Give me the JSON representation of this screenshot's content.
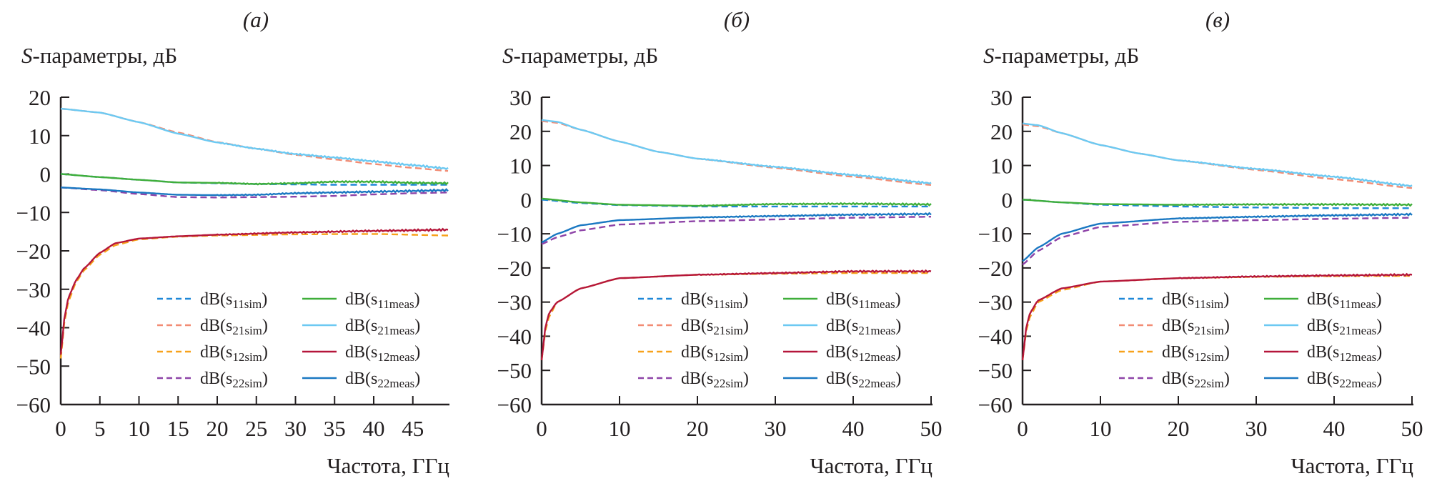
{
  "figure": {
    "y_label_prefix": "S",
    "y_label_rest": "-параметры, дБ",
    "x_label": "Частота, ГГц"
  },
  "colors": {
    "s11sim": "#1e88d8",
    "s21sim": "#f28c74",
    "s12sim": "#f7a21b",
    "s22sim": "#8e44a8",
    "s11meas": "#3fae3a",
    "s21meas": "#6cc9f2",
    "s12meas": "#b5163a",
    "s22meas": "#1a78c2",
    "axis": "#231f20"
  },
  "chart_data": [
    {
      "type": "line",
      "title": "(а)",
      "title_letter": "а",
      "ylabel": "S-параметры, дБ",
      "xlabel": "Частота, ГГц",
      "xlim": [
        0,
        49.5
      ],
      "ylim": [
        -60,
        20
      ],
      "xticks": [
        0,
        5,
        10,
        15,
        20,
        25,
        30,
        35,
        40,
        45
      ],
      "yticks": [
        20,
        10,
        0,
        -10,
        -20,
        -30,
        -40,
        -50,
        -60
      ],
      "legend": "bottom-right",
      "grid": false,
      "series": [
        {
          "key": "s11sim",
          "name": "dB(s11sim)",
          "sub": "11sim",
          "style": "dashed",
          "x": [
            0,
            5,
            10,
            15,
            20,
            25,
            30,
            35,
            40,
            45,
            49.5
          ],
          "y": [
            0,
            -0.8,
            -1.5,
            -2.2,
            -2.4,
            -2.6,
            -2.7,
            -2.8,
            -2.8,
            -2.8,
            -2.8
          ]
        },
        {
          "key": "s21sim",
          "name": "dB(s21sim)",
          "sub": "21sim",
          "style": "dashed",
          "x": [
            0,
            5,
            10,
            15,
            20,
            25,
            30,
            35,
            40,
            45,
            49.5
          ],
          "y": [
            17,
            16,
            13.5,
            10.8,
            8.3,
            6.6,
            5,
            3.8,
            2.6,
            1.6,
            0.8
          ]
        },
        {
          "key": "s12sim",
          "name": "dB(s12sim)",
          "sub": "12sim",
          "style": "dashed",
          "x": [
            0,
            0.5,
            1,
            2,
            3,
            5,
            7,
            10,
            15,
            20,
            30,
            40,
            49.5
          ],
          "y": [
            -48,
            -38,
            -33,
            -28,
            -25,
            -21,
            -18.5,
            -17,
            -16.3,
            -16,
            -15.7,
            -15.6,
            -16
          ]
        },
        {
          "key": "s22sim",
          "name": "dB(s22sim)",
          "sub": "22sim",
          "style": "dashed",
          "x": [
            0,
            5,
            10,
            15,
            20,
            25,
            30,
            35,
            40,
            45,
            49.5
          ],
          "y": [
            -3.5,
            -4.2,
            -5.2,
            -6,
            -6.1,
            -6,
            -5.9,
            -5.7,
            -5.3,
            -5,
            -4.8
          ]
        },
        {
          "key": "s11meas",
          "name": "dB(s11meas)",
          "sub": "11meas",
          "style": "solid",
          "x": [
            0,
            5,
            10,
            15,
            20,
            25,
            30,
            35,
            40,
            45,
            49.5
          ],
          "y": [
            0,
            -0.8,
            -1.5,
            -2.2,
            -2.3,
            -2.6,
            -2.4,
            -2,
            -2,
            -2.3,
            -2.4
          ]
        },
        {
          "key": "s21meas",
          "name": "dB(s21meas)",
          "sub": "21meas",
          "style": "solid",
          "x": [
            0,
            5,
            10,
            15,
            20,
            25,
            30,
            35,
            40,
            45,
            49.5
          ],
          "y": [
            17,
            16,
            13.5,
            10.5,
            8.2,
            6.6,
            5.2,
            4.3,
            3.3,
            2.3,
            1.4
          ]
        },
        {
          "key": "s12meas",
          "name": "dB(s12meas)",
          "sub": "12meas",
          "style": "solid",
          "x": [
            0,
            0.5,
            1,
            2,
            3,
            5,
            7,
            10,
            15,
            20,
            30,
            40,
            49.5
          ],
          "y": [
            -47,
            -37,
            -32,
            -27.5,
            -24.5,
            -20.5,
            -18,
            -16.8,
            -16.2,
            -15.8,
            -15.2,
            -14.8,
            -14.5
          ]
        },
        {
          "key": "s22meas",
          "name": "dB(s22meas)",
          "sub": "22meas",
          "style": "solid",
          "x": [
            0,
            5,
            10,
            15,
            20,
            25,
            30,
            35,
            40,
            45,
            49.5
          ],
          "y": [
            -3.5,
            -4,
            -4.8,
            -5.4,
            -5.5,
            -5.4,
            -5,
            -4.8,
            -4.6,
            -4.4,
            -4.2
          ]
        }
      ]
    },
    {
      "type": "line",
      "title": "(б)",
      "title_letter": "б",
      "ylabel": "S-параметры, дБ",
      "xlabel": "Частота, ГГц",
      "xlim": [
        0,
        50
      ],
      "ylim": [
        -60,
        30
      ],
      "xticks": [
        0,
        10,
        20,
        30,
        40,
        50
      ],
      "yticks": [
        30,
        20,
        10,
        0,
        -10,
        -20,
        -30,
        -40,
        -50,
        -60
      ],
      "legend": "bottom-right",
      "grid": false,
      "series": [
        {
          "key": "s11sim",
          "name": "dB(s11sim)",
          "sub": "11sim",
          "style": "dashed",
          "x": [
            0,
            5,
            10,
            20,
            30,
            40,
            50
          ],
          "y": [
            0,
            -1,
            -1.6,
            -2,
            -2,
            -2,
            -2
          ]
        },
        {
          "key": "s21sim",
          "name": "dB(s21sim)",
          "sub": "21sim",
          "style": "dashed",
          "x": [
            0,
            2,
            5,
            10,
            15,
            20,
            30,
            40,
            50
          ],
          "y": [
            23,
            22.5,
            20.5,
            17,
            14,
            12,
            9.3,
            6.7,
            4.3
          ]
        },
        {
          "key": "s12sim",
          "name": "dB(s12sim)",
          "sub": "12sim",
          "style": "dashed",
          "x": [
            0,
            0.5,
            1,
            2,
            5,
            10,
            20,
            30,
            40,
            50
          ],
          "y": [
            -47,
            -38,
            -34,
            -30,
            -26,
            -23,
            -22,
            -21.7,
            -21.5,
            -21.5
          ]
        },
        {
          "key": "s22sim",
          "name": "dB(s22sim)",
          "sub": "22sim",
          "style": "dashed",
          "x": [
            0,
            2,
            5,
            10,
            20,
            30,
            40,
            50
          ],
          "y": [
            -13,
            -11,
            -9,
            -7.3,
            -6.3,
            -5.8,
            -5.3,
            -5
          ]
        },
        {
          "key": "s11meas",
          "name": "dB(s11meas)",
          "sub": "11meas",
          "style": "solid",
          "x": [
            0,
            5,
            10,
            20,
            30,
            40,
            50
          ],
          "y": [
            0.3,
            -0.8,
            -1.5,
            -1.8,
            -1.3,
            -1.2,
            -1.4
          ]
        },
        {
          "key": "s21meas",
          "name": "dB(s21meas)",
          "sub": "21meas",
          "style": "solid",
          "x": [
            0,
            2,
            5,
            10,
            15,
            20,
            30,
            40,
            50
          ],
          "y": [
            23.3,
            22.8,
            20.5,
            17,
            14,
            12,
            9.6,
            7.2,
            4.8
          ]
        },
        {
          "key": "s12meas",
          "name": "dB(s12meas)",
          "sub": "12meas",
          "style": "solid",
          "x": [
            0,
            0.5,
            1,
            2,
            5,
            10,
            20,
            30,
            40,
            50
          ],
          "y": [
            -47,
            -37,
            -33,
            -30,
            -26,
            -23,
            -22,
            -21.5,
            -21,
            -21
          ]
        },
        {
          "key": "s22meas",
          "name": "dB(s22meas)",
          "sub": "22meas",
          "style": "solid",
          "x": [
            0,
            2,
            5,
            10,
            20,
            30,
            40,
            50
          ],
          "y": [
            -12.5,
            -10,
            -7.5,
            -6,
            -5.2,
            -4.8,
            -4.4,
            -4.2
          ]
        }
      ]
    },
    {
      "type": "line",
      "title": "(в)",
      "title_letter": "в",
      "ylabel": "S-параметры, дБ",
      "xlabel": "Частота, ГГц",
      "xlim": [
        0,
        50
      ],
      "ylim": [
        -60,
        30
      ],
      "xticks": [
        0,
        10,
        20,
        30,
        40,
        50
      ],
      "yticks": [
        30,
        20,
        10,
        0,
        -10,
        -20,
        -30,
        -40,
        -50,
        -60
      ],
      "legend": "bottom-right",
      "grid": false,
      "series": [
        {
          "key": "s11sim",
          "name": "dB(s11sim)",
          "sub": "11sim",
          "style": "dashed",
          "x": [
            0,
            5,
            10,
            20,
            30,
            40,
            50
          ],
          "y": [
            0,
            -0.8,
            -1.5,
            -2,
            -2.3,
            -2.5,
            -2.5
          ]
        },
        {
          "key": "s21sim",
          "name": "dB(s21sim)",
          "sub": "21sim",
          "style": "dashed",
          "x": [
            0,
            2,
            5,
            10,
            15,
            20,
            30,
            40,
            50
          ],
          "y": [
            22,
            21.5,
            19.5,
            16,
            13.5,
            11.5,
            8.7,
            6,
            3.4
          ]
        },
        {
          "key": "s12sim",
          "name": "dB(s12sim)",
          "sub": "12sim",
          "style": "dashed",
          "x": [
            0,
            0.5,
            1,
            2,
            5,
            10,
            20,
            30,
            40,
            50
          ],
          "y": [
            -47,
            -38,
            -34,
            -30,
            -26.5,
            -24,
            -23,
            -22.6,
            -22.4,
            -22.3
          ]
        },
        {
          "key": "s22sim",
          "name": "dB(s22sim)",
          "sub": "22sim",
          "style": "dashed",
          "x": [
            0,
            2,
            5,
            10,
            20,
            30,
            40,
            50
          ],
          "y": [
            -19,
            -15,
            -11,
            -8,
            -6.5,
            -6,
            -5.6,
            -5.3
          ]
        },
        {
          "key": "s11meas",
          "name": "dB(s11meas)",
          "sub": "11meas",
          "style": "solid",
          "x": [
            0,
            5,
            10,
            20,
            30,
            40,
            50
          ],
          "y": [
            0,
            -0.8,
            -1.3,
            -1.5,
            -1.4,
            -1.4,
            -1.5
          ]
        },
        {
          "key": "s21meas",
          "name": "dB(s21meas)",
          "sub": "21meas",
          "style": "solid",
          "x": [
            0,
            2,
            5,
            10,
            15,
            20,
            30,
            40,
            50
          ],
          "y": [
            22.3,
            21.8,
            19.5,
            16,
            13.5,
            11.5,
            9,
            6.7,
            4
          ]
        },
        {
          "key": "s12meas",
          "name": "dB(s12meas)",
          "sub": "12meas",
          "style": "solid",
          "x": [
            0,
            0.5,
            1,
            2,
            5,
            10,
            20,
            30,
            40,
            50
          ],
          "y": [
            -47,
            -37,
            -33,
            -29.5,
            -26,
            -24,
            -23,
            -22.5,
            -22.2,
            -22
          ]
        },
        {
          "key": "s22meas",
          "name": "dB(s22meas)",
          "sub": "22meas",
          "style": "solid",
          "x": [
            0,
            2,
            5,
            10,
            20,
            30,
            40,
            50
          ],
          "y": [
            -18,
            -14,
            -10,
            -7,
            -5.5,
            -5,
            -4.6,
            -4.3
          ]
        }
      ]
    }
  ]
}
